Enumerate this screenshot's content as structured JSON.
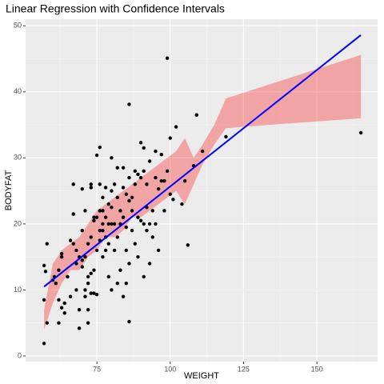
{
  "chart_data": {
    "type": "scatter",
    "title": "Linear Regression with Confidence Intervals",
    "x_label": "WEIGHT",
    "y_label": "BODYFAT",
    "xlim": [
      50.7,
      170.7
    ],
    "ylim": [
      -0.85,
      51
    ],
    "xticks": [
      75,
      100,
      125,
      150
    ],
    "yticks": [
      0,
      10,
      20,
      30,
      40,
      50
    ],
    "xminor": [
      62.5,
      87.5,
      112.5,
      137.5,
      162.5
    ],
    "yminor": [
      5,
      15,
      25,
      35,
      45
    ],
    "grid": true,
    "point_color": "#000000",
    "x": [
      57,
      57.5,
      57,
      57,
      58,
      58,
      60,
      60.5,
      61,
      62,
      62,
      63,
      63,
      63,
      62,
      64,
      64,
      65,
      66,
      66,
      67,
      67,
      67,
      68,
      68,
      68,
      69,
      69,
      69,
      70,
      70,
      70,
      70,
      71,
      71,
      71,
      71,
      72,
      72,
      72,
      72,
      72,
      73,
      73,
      73,
      73,
      73,
      74,
      74,
      74,
      74,
      75,
      75,
      75,
      75,
      76,
      76,
      76,
      76,
      76,
      77,
      77,
      77,
      77,
      77,
      78,
      78,
      78,
      78,
      79,
      79,
      79,
      79,
      80,
      80,
      80,
      80,
      80,
      81,
      81,
      81,
      82,
      82,
      82,
      82,
      83,
      83,
      83,
      84,
      84,
      84,
      84,
      85,
      85,
      85,
      85,
      86,
      86,
      86,
      86,
      86,
      87,
      87,
      87,
      88,
      88,
      88,
      89,
      89,
      89,
      90,
      90,
      90,
      91,
      91,
      91,
      91,
      92,
      92,
      92,
      93,
      93,
      93,
      94,
      94,
      95,
      95,
      95,
      96,
      96,
      97,
      97,
      98,
      98,
      99,
      99,
      100,
      100,
      101,
      102,
      104,
      105,
      106,
      108,
      109,
      111,
      119,
      165
    ],
    "y": [
      13.7,
      12.8,
      8.5,
      1.9,
      17,
      5,
      11.5,
      12,
      11,
      13,
      8.5,
      15,
      15.5,
      7.3,
      5,
      8,
      6.5,
      12,
      9,
      17.5,
      17,
      21.5,
      26,
      16,
      14,
      10,
      15,
      7,
      4.2,
      14.5,
      13.5,
      19,
      25.3,
      15,
      22,
      10,
      9,
      12,
      17,
      11,
      7,
      5,
      25.5,
      26,
      18,
      12.5,
      9.5,
      21,
      20.5,
      9.5,
      13,
      30.4,
      21,
      16,
      9.3,
      31.6,
      26,
      22,
      19,
      17.5,
      24,
      22,
      20,
      19,
      15,
      25.5,
      21,
      18,
      16,
      23,
      20,
      17,
      12,
      30,
      25,
      22.5,
      20,
      10,
      26,
      20,
      16,
      28.5,
      24,
      18,
      11,
      22,
      20,
      13,
      28.5,
      25.5,
      21,
      9,
      24.5,
      19.5,
      16,
      11,
      23.5,
      27,
      38.1,
      5.2,
      14,
      24,
      22,
      19,
      28,
      26,
      17,
      27.5,
      21,
      15,
      32.3,
      27,
      20.5,
      31.5,
      28,
      20,
      12,
      26,
      22.5,
      19,
      29.5,
      20,
      14,
      22,
      18,
      27,
      31,
      20,
      25.3,
      16,
      30.5,
      26.5,
      26.5,
      22,
      45.1,
      28,
      24.5,
      33,
      23.7,
      34.7,
      23,
      26.5,
      16.8,
      28.8,
      36.5,
      31,
      33.2,
      33.8
    ],
    "line": {
      "color": "#0000ff",
      "x": [
        57,
        165
      ],
      "y": [
        10.5,
        48.6
      ]
    },
    "ribbon": {
      "color": "#ff0000",
      "x": [
        57,
        60,
        63,
        66,
        69,
        72,
        75,
        78,
        81,
        84,
        87,
        90,
        93,
        96,
        99,
        102,
        105,
        108,
        111,
        115,
        119,
        140,
        165
      ],
      "lower": [
        4,
        8,
        11,
        13,
        13,
        15,
        16,
        18,
        18,
        19,
        21,
        21,
        22,
        23,
        24,
        25,
        23,
        26,
        29,
        32,
        34.5,
        35.2,
        36
      ],
      "upper": [
        7,
        14,
        16,
        17,
        18,
        20,
        22,
        23,
        24,
        25,
        26,
        27,
        28,
        29,
        30,
        31,
        33,
        30,
        32,
        35,
        39,
        42,
        45.6
      ]
    }
  }
}
